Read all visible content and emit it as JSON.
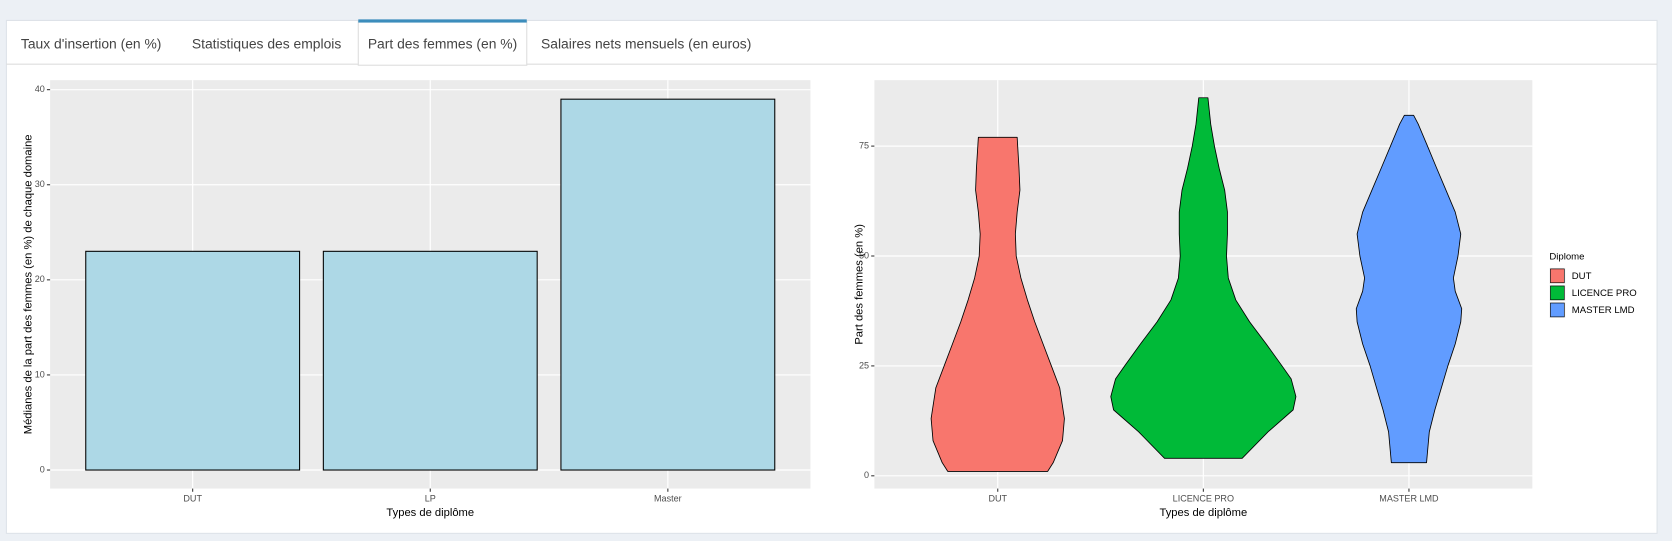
{
  "tabs": [
    {
      "label": "Taux d'insertion (en %)",
      "active": false
    },
    {
      "label": "Statistiques des emplois",
      "active": false
    },
    {
      "label": "Part des femmes (en %)",
      "active": true
    },
    {
      "label": "Salaires nets mensuels (en euros)",
      "active": false
    }
  ],
  "chart_data": [
    {
      "type": "bar",
      "categories": [
        "DUT",
        "LP",
        "Master"
      ],
      "values": [
        23,
        23,
        39
      ],
      "color": "#add8e6",
      "xlabel": "Types de diplôme",
      "ylabel": "Médianes de la part des femmes (en %) de chaque domaine",
      "ylim": [
        -1.95,
        41
      ],
      "yticks": [
        0,
        10,
        20,
        30,
        40
      ],
      "grid": true
    },
    {
      "type": "violin",
      "categories": [
        "DUT",
        "LICENCE PRO",
        "MASTER LMD"
      ],
      "xlabel": "Types de diplôme",
      "ylabel": "Part des femmes (en %)",
      "ylim": [
        -2.9,
        90
      ],
      "yticks": [
        0,
        25,
        50,
        75
      ],
      "grid": true,
      "legend_title": "Diplome",
      "legend": "right",
      "series": [
        {
          "name": "DUT",
          "color": "#F8766D",
          "y": [
            1,
            3,
            8,
            13,
            20,
            25,
            30,
            35,
            40,
            45,
            50,
            55,
            60,
            65,
            70,
            77
          ],
          "width": [
            0.54,
            0.6,
            0.7,
            0.72,
            0.67,
            0.58,
            0.49,
            0.4,
            0.32,
            0.25,
            0.2,
            0.19,
            0.21,
            0.24,
            0.23,
            0.21
          ]
        },
        {
          "name": "LICENCE PRO",
          "color": "#00BA38",
          "y": [
            4,
            10,
            15,
            18,
            22,
            25,
            30,
            35,
            40,
            45,
            50,
            55,
            60,
            65,
            70,
            75,
            80,
            86
          ],
          "width": [
            0.42,
            0.7,
            0.97,
            1,
            0.95,
            0.85,
            0.68,
            0.5,
            0.35,
            0.27,
            0.25,
            0.26,
            0.26,
            0.23,
            0.17,
            0.12,
            0.08,
            0.05
          ]
        },
        {
          "name": "MASTER LMD",
          "color": "#619CFF",
          "y": [
            3,
            10,
            15,
            20,
            25,
            30,
            35,
            38,
            42,
            45,
            50,
            55,
            60,
            65,
            70,
            75,
            80,
            82
          ],
          "width": [
            0.19,
            0.22,
            0.28,
            0.35,
            0.42,
            0.5,
            0.56,
            0.57,
            0.5,
            0.48,
            0.53,
            0.56,
            0.5,
            0.4,
            0.3,
            0.2,
            0.1,
            0.05
          ]
        }
      ]
    }
  ]
}
